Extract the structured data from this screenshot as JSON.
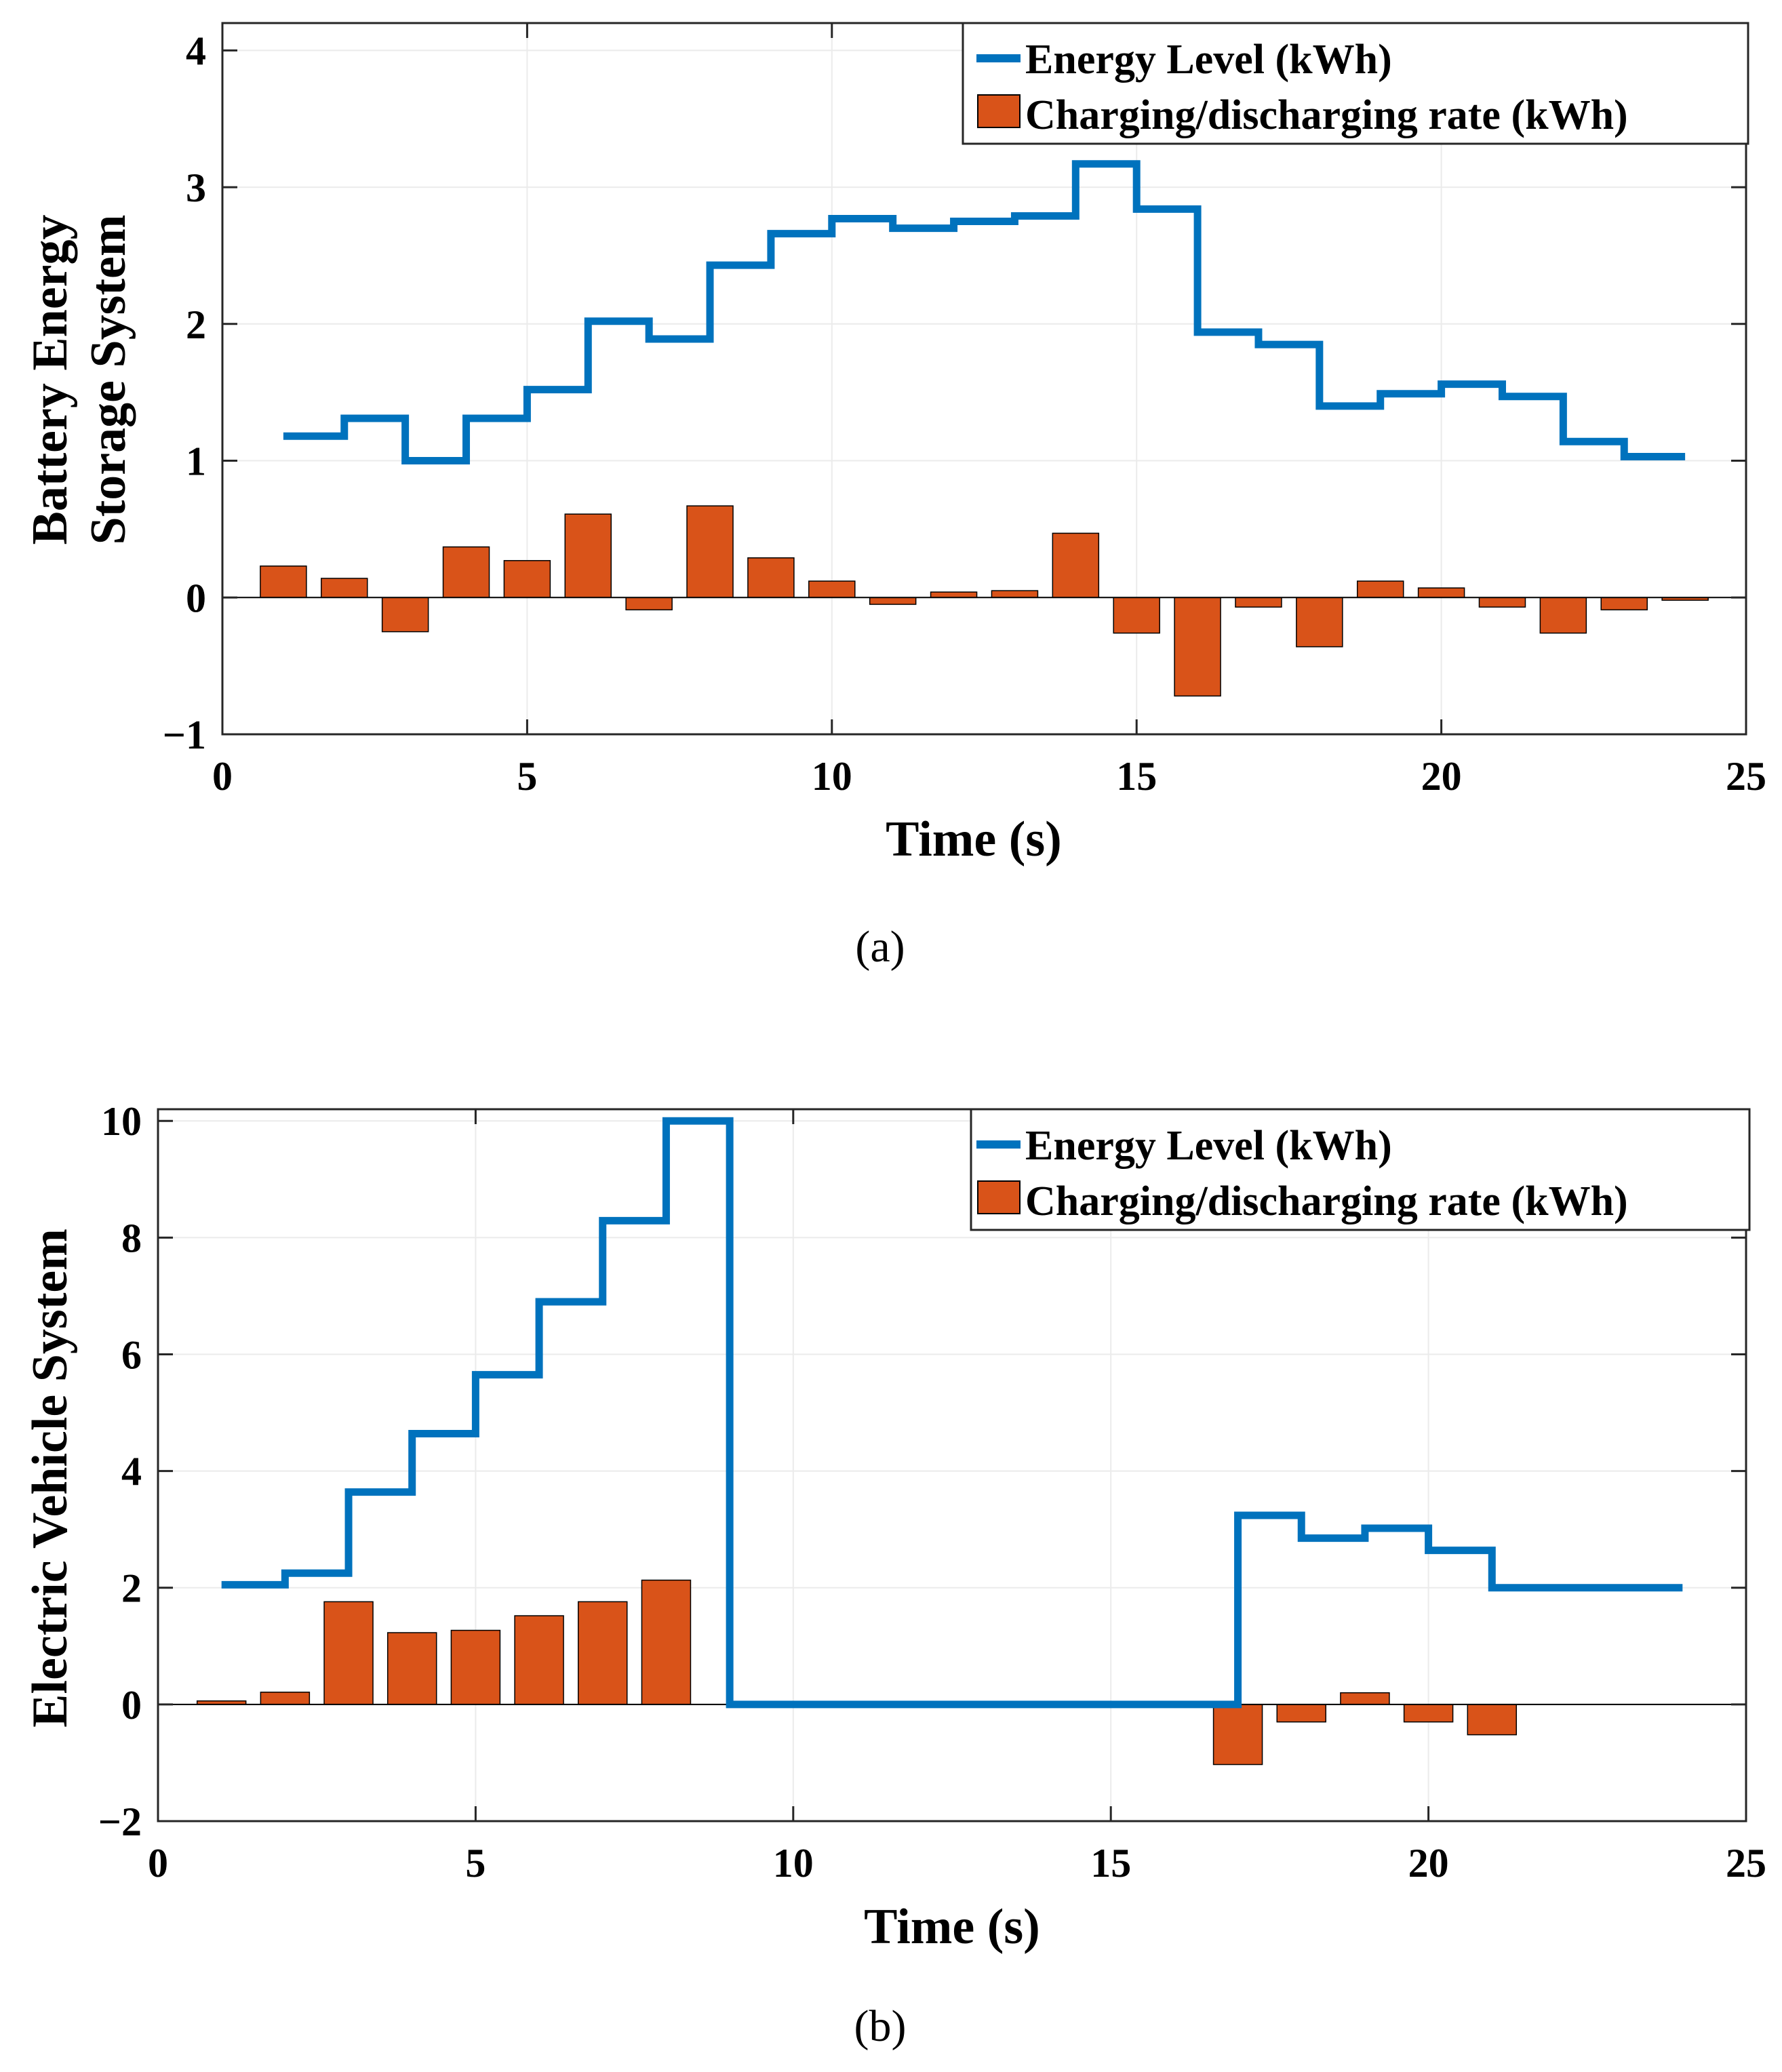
{
  "colors": {
    "energy_line": "#0072bd",
    "rate_bar": "#d95319",
    "grid": "#ebebeb",
    "axis": "#262626"
  },
  "chart_data": [
    {
      "type": "bar",
      "panel_label": "(a)",
      "xlabel": "Time (s)",
      "ylabel": [
        "Battery Energy",
        "Storage System"
      ],
      "xlim": [
        0,
        25
      ],
      "ylim": [
        -1,
        4.2
      ],
      "xticks": [
        0,
        5,
        10,
        15,
        20,
        25
      ],
      "yticks": [
        -1,
        0,
        1,
        2,
        3,
        4
      ],
      "ytick_labels": [
        "−1",
        "0",
        "1",
        "2",
        "3",
        "4"
      ],
      "grid": true,
      "legend_position": "top-right",
      "legend": [
        "Energy Level (kWh)",
        "Charging/discharging rate (kWh)"
      ],
      "series": [
        {
          "name": "Energy Level (kWh)",
          "style": "stairs",
          "x": [
            1,
            2,
            3,
            4,
            5,
            6,
            7,
            8,
            9,
            10,
            11,
            12,
            13,
            14,
            15,
            16,
            17,
            18,
            19,
            20,
            21,
            22,
            23,
            24
          ],
          "values": [
            1.18,
            1.31,
            1.0,
            1.31,
            1.52,
            2.02,
            1.89,
            2.43,
            2.66,
            2.77,
            2.7,
            2.75,
            2.79,
            3.17,
            2.84,
            1.94,
            1.85,
            1.4,
            1.49,
            1.56,
            1.47,
            1.14,
            1.03,
            1.03
          ]
        },
        {
          "name": "Charging/discharging rate (kWh)",
          "style": "bar",
          "x": [
            1,
            2,
            3,
            4,
            5,
            6,
            7,
            8,
            9,
            10,
            11,
            12,
            13,
            14,
            15,
            16,
            17,
            18,
            19,
            20,
            21,
            22,
            23,
            24
          ],
          "values": [
            0.23,
            0.14,
            -0.25,
            0.37,
            0.27,
            0.61,
            -0.09,
            0.67,
            0.29,
            0.12,
            -0.05,
            0.04,
            0.05,
            0.47,
            -0.26,
            -0.72,
            -0.07,
            -0.36,
            0.12,
            0.07,
            -0.07,
            -0.26,
            -0.09,
            -0.02
          ]
        }
      ]
    },
    {
      "type": "bar",
      "panel_label": "(b)",
      "xlabel": "Time (s)",
      "ylabel": [
        "Electric Vehicle System"
      ],
      "xlim": [
        0,
        25
      ],
      "ylim": [
        -2,
        10.2
      ],
      "xticks": [
        0,
        5,
        10,
        15,
        20,
        25
      ],
      "yticks": [
        -2,
        0,
        2,
        4,
        6,
        8,
        10
      ],
      "ytick_labels": [
        "−2",
        "0",
        "2",
        "4",
        "6",
        "8",
        "10"
      ],
      "grid": true,
      "legend_position": "top-right",
      "legend": [
        "Energy Level (kWh)",
        "Charging/discharging rate (kWh)"
      ],
      "series": [
        {
          "name": "Energy Level (kWh)",
          "style": "stairs",
          "x": [
            1,
            2,
            3,
            4,
            5,
            6,
            7,
            8,
            9,
            10,
            11,
            12,
            13,
            14,
            15,
            16,
            17,
            18,
            19,
            20,
            21,
            22,
            23,
            24
          ],
          "values": [
            2.05,
            2.25,
            3.64,
            4.64,
            5.65,
            6.9,
            8.29,
            10.0,
            0,
            0,
            0,
            0,
            0,
            0,
            0,
            0,
            3.24,
            2.85,
            3.02,
            2.64,
            2.0,
            2.0,
            2.0,
            2.0
          ]
        },
        {
          "name": "Charging/discharging rate (kWh)",
          "style": "bar",
          "x": [
            1,
            2,
            3,
            4,
            5,
            6,
            7,
            8,
            9,
            10,
            11,
            12,
            13,
            14,
            15,
            16,
            17,
            18,
            19,
            20,
            21,
            22,
            23,
            24
          ],
          "values": [
            0.06,
            0.21,
            1.76,
            1.23,
            1.27,
            1.52,
            1.76,
            2.13,
            0,
            0,
            0,
            0,
            0,
            0,
            0,
            0,
            -1.03,
            -0.3,
            0.2,
            -0.3,
            -0.52,
            0,
            0,
            0
          ]
        }
      ]
    }
  ]
}
